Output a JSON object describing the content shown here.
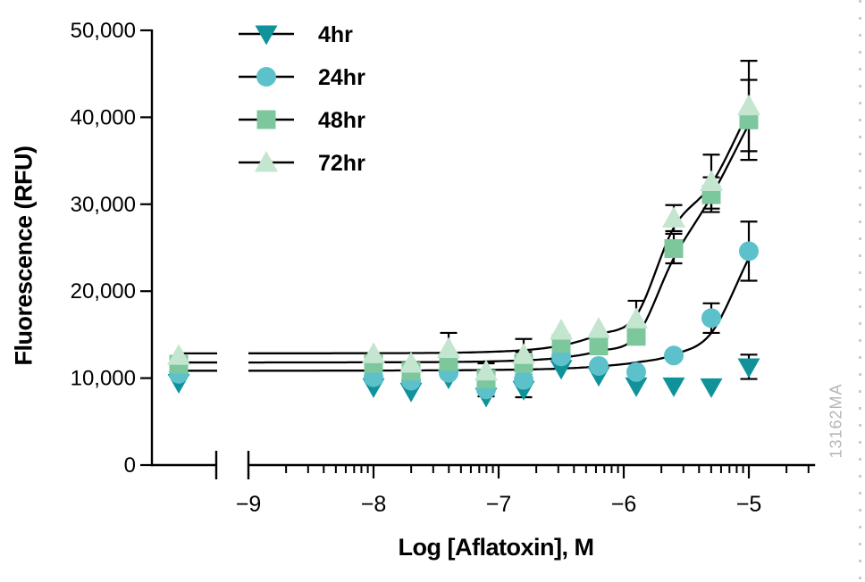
{
  "watermark": "13162MA",
  "colors": {
    "axis": "#000000",
    "curve": "#000000",
    "watermark": "#b3b7b8",
    "dotted_edge": "#c9cdcd",
    "series_4hr": "#10929b",
    "series_24hr": "#5cc1cb",
    "series_48hr": "#7cc79b",
    "series_72hr": "#c4e5cf"
  },
  "chart_data": {
    "type": "scatter",
    "title": "",
    "xlabel": "Log [Aflatoxin], M",
    "ylabel": "Fluorescence (RFU)",
    "legend_position": "top-left-inside",
    "grid": false,
    "x_axis": {
      "scale": "log10",
      "axis_break_before": -9,
      "major_ticks": [
        -9,
        -8,
        -7,
        -6,
        -5
      ],
      "tick_labels": [
        "−9",
        "−8",
        "−7",
        "−6",
        "−5"
      ],
      "minor_ticks_per_decade": [
        2,
        3,
        4,
        5,
        6,
        7,
        8,
        9
      ],
      "minor_ticks_after_last": [
        -4.699,
        -4.523
      ],
      "axis_end": -4.47
    },
    "y_axis": {
      "min": 0,
      "max": 50000,
      "ticks": [
        0,
        10000,
        20000,
        30000,
        40000,
        50000
      ],
      "tick_labels": [
        "0",
        "10,000",
        "20,000",
        "30,000",
        "40,000",
        "50,000"
      ]
    },
    "x_values": [
      -8,
      -7.7,
      -7.4,
      -7.1,
      -6.8,
      -6.5,
      -6.2,
      -5.9,
      -5.6,
      -5.3,
      -5
    ],
    "control_point": {
      "description": "no-aflatoxin control plotted left of axis break"
    },
    "series": [
      {
        "name": "4hr",
        "marker": "triangle-down",
        "color": "#10929b",
        "control": 9500,
        "values": [
          9000,
          8500,
          10000,
          7900,
          8700,
          11100,
          10300,
          9100,
          9100,
          9000,
          11300
        ],
        "errors": [
          0,
          0,
          0,
          0,
          0,
          0,
          0,
          0,
          0,
          0,
          1400
        ],
        "fit": null
      },
      {
        "name": "24hr",
        "marker": "circle",
        "color": "#5cc1cb",
        "control": 10500,
        "values": [
          10100,
          9700,
          10600,
          8700,
          9800,
          12500,
          11400,
          10700,
          12600,
          16900,
          24600
        ],
        "errors": [
          0,
          0,
          0,
          800,
          2000,
          0,
          0,
          0,
          0,
          1700,
          3400
        ],
        "fit": {
          "baseline": 10850,
          "x": [
            -9,
            -8,
            -7,
            -6.5,
            -6.2,
            -5.9,
            -5.6,
            -5.3,
            -5.0
          ],
          "y": [
            10850,
            10870,
            10950,
            11100,
            11350,
            11800,
            12700,
            15200,
            23800
          ]
        }
      },
      {
        "name": "48hr",
        "marker": "square",
        "color": "#7cc79b",
        "control": 11600,
        "values": [
          11700,
          10800,
          11900,
          9900,
          11700,
          14000,
          13700,
          14800,
          24900,
          31100,
          39700
        ],
        "errors": [
          0,
          0,
          0,
          0,
          1300,
          0,
          0,
          0,
          1700,
          2000,
          4600
        ],
        "fit": {
          "baseline": 11800,
          "x": [
            -9,
            -8,
            -7,
            -6.5,
            -6.2,
            -5.9,
            -5.6,
            -5.3,
            -5.0
          ],
          "y": [
            11800,
            11820,
            11950,
            12350,
            13100,
            14800,
            23800,
            30900,
            39200
          ]
        }
      },
      {
        "name": "72hr",
        "marker": "triangle-up",
        "color": "#c4e5cf",
        "control": 12600,
        "values": [
          12800,
          11700,
          13400,
          10800,
          12700,
          15500,
          15700,
          16800,
          28400,
          32600,
          41300
        ],
        "errors": [
          0,
          0,
          1800,
          900,
          1800,
          0,
          0,
          2100,
          1500,
          3100,
          5200
        ],
        "fit": {
          "baseline": 12850,
          "x": [
            -9,
            -8,
            -7,
            -6.5,
            -6.2,
            -5.9,
            -5.6,
            -5.3,
            -5.0
          ],
          "y": [
            12850,
            12870,
            13060,
            13750,
            15000,
            17200,
            27300,
            32300,
            40700
          ]
        }
      }
    ]
  }
}
